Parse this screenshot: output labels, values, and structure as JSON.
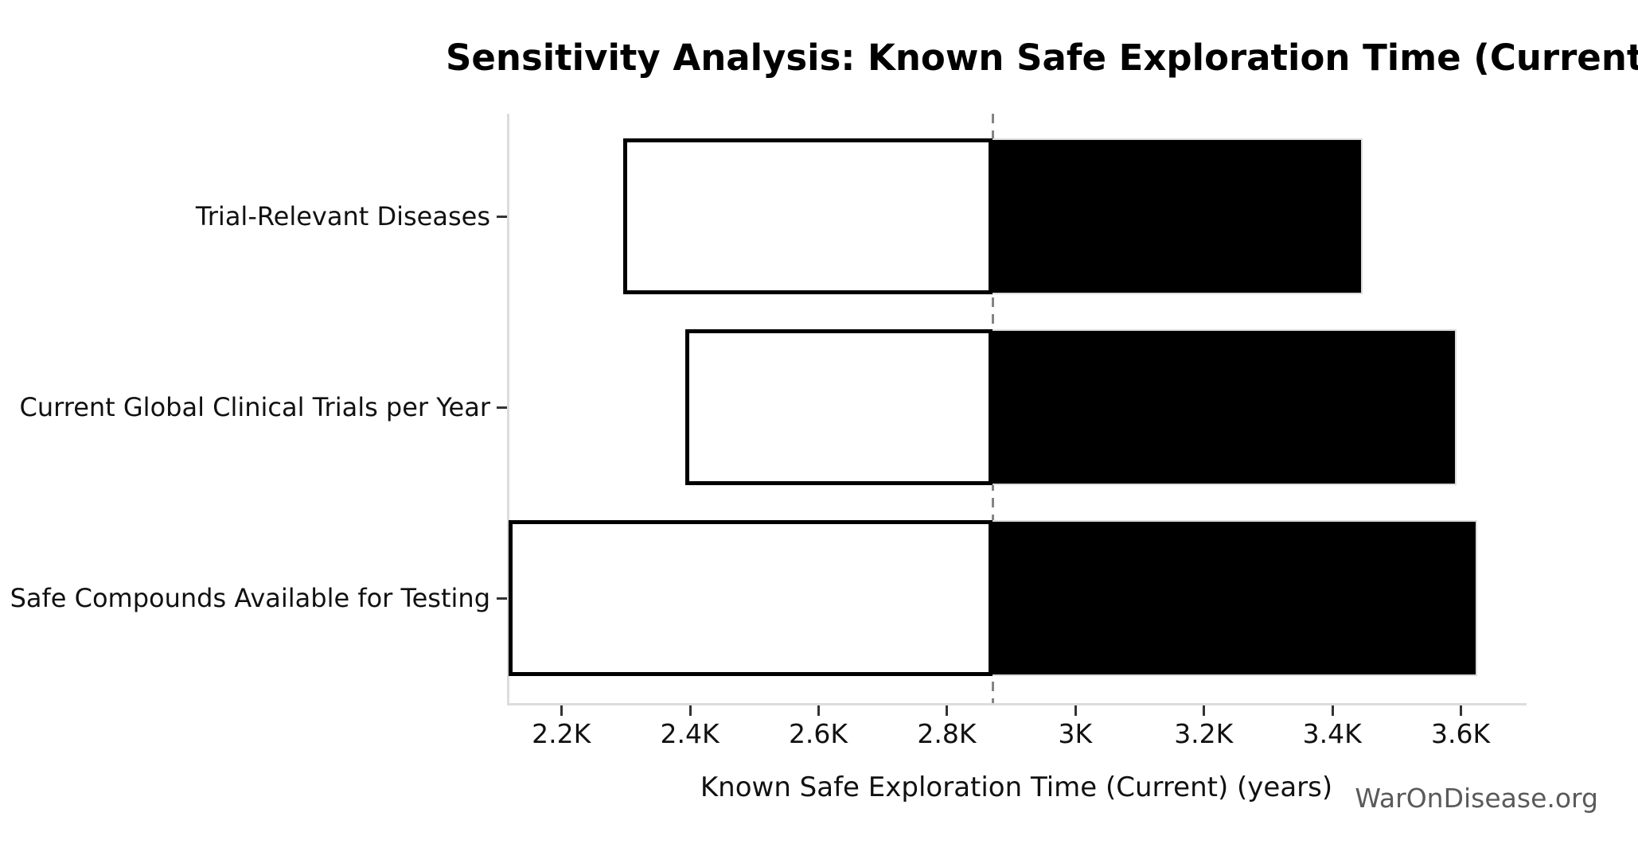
{
  "chart_data": {
    "type": "bar",
    "variant": "tornado-sensitivity",
    "orientation": "horizontal",
    "title": "Sensitivity Analysis: Known Safe Exploration Time (Current)",
    "xlabel": "Known Safe Exploration Time (Current) (years)",
    "watermark": "WarOnDisease.org",
    "categories": [
      "Trial-Relevant Diseases",
      "Current Global Clinical Trials per Year",
      "Safe Compounds Available for Testing"
    ],
    "series": [
      {
        "name": "low",
        "values": [
          2297,
          2393,
          2118
        ]
      },
      {
        "name": "high",
        "values": [
          3447,
          3594,
          3626
        ]
      }
    ],
    "baseline": 2871,
    "x_ticks": [
      {
        "label": "2.2K",
        "value": 2200
      },
      {
        "label": "2.4K",
        "value": 2400
      },
      {
        "label": "2.6K",
        "value": 2600
      },
      {
        "label": "2.8K",
        "value": 2800
      },
      {
        "label": "3K",
        "value": 3000
      },
      {
        "label": "3.2K",
        "value": 3200
      },
      {
        "label": "3.4K",
        "value": 3400
      },
      {
        "label": "3.6K",
        "value": 3600
      }
    ],
    "xlim": [
      2118,
      3699
    ],
    "grid": false,
    "legend": false,
    "colors": {
      "low_fill": "#ffffff",
      "low_edge": "#000000",
      "high_fill": "#000000",
      "high_edge": "#dcdcdc",
      "baseline_line": "#848484",
      "spine": "#dcdcdc",
      "tick_mark": "#333333",
      "text": "#111111",
      "watermark": "#5a5a5a"
    }
  }
}
